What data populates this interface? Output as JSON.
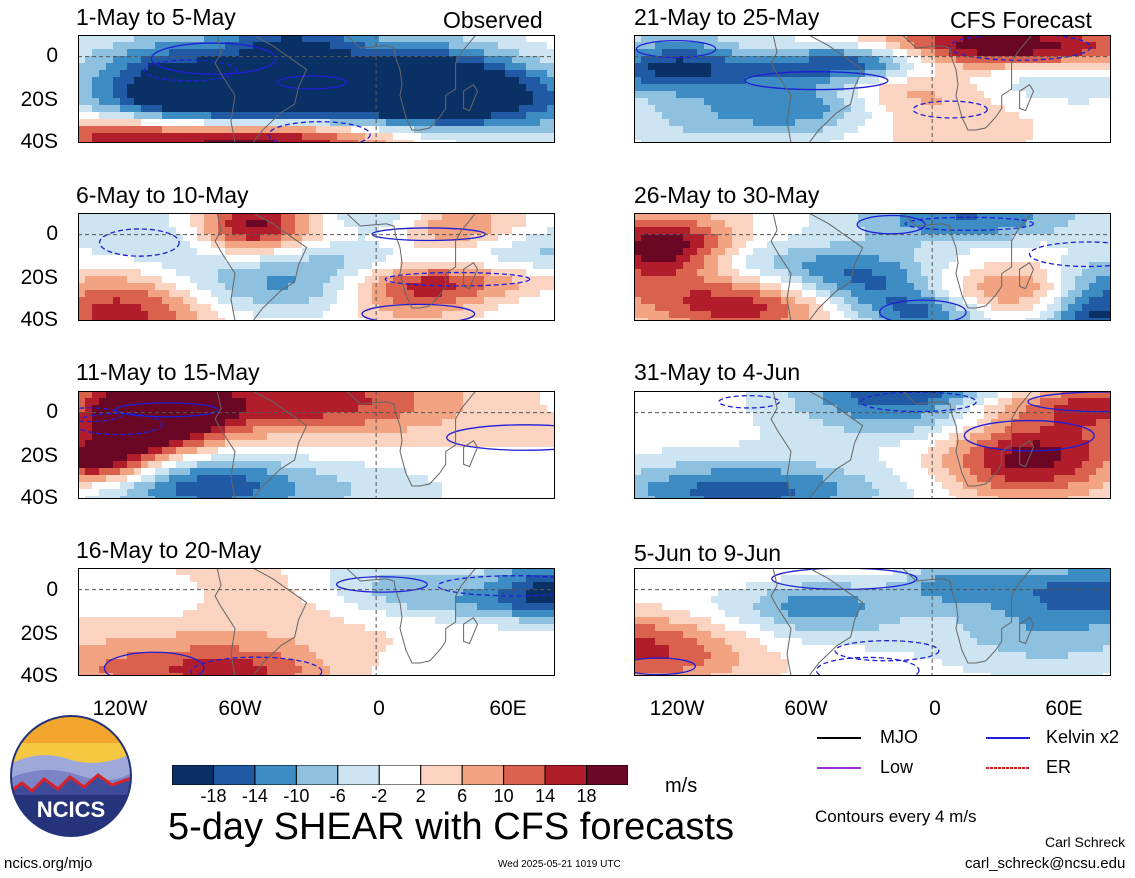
{
  "figure": {
    "main_title": "5-day SHEAR with CFS forecasts",
    "observed_label": "Observed",
    "forecast_label": "CFS Forecast",
    "units": "m/s",
    "contour_note": "Contours every 4 m/s",
    "author": "Carl Schreck",
    "email": "carl_schreck@ncsu.edu",
    "site": "ncics.org/mjo",
    "timestamp": "Wed 2025-05-21 1019 UTC",
    "logo_text": "NCICS"
  },
  "colors": {
    "negative": [
      "#0a3166",
      "#215aa4",
      "#3d8cc3",
      "#8dc1df",
      "#cde4f2"
    ],
    "neutral": "#ffffff",
    "positive": [
      "#fad3c1",
      "#f2a382",
      "#d9614e",
      "#b21d2b",
      "#6a0724"
    ],
    "mjo": "#000000",
    "kelvin": "#1f1fd6",
    "low": "#9b30d9",
    "er": "#d91a1a"
  },
  "legend": [
    {
      "key": "mjo",
      "label": "MJO"
    },
    {
      "key": "kelvin",
      "label": "Kelvin x2"
    },
    {
      "key": "low",
      "label": "Low"
    },
    {
      "key": "er",
      "label": "ER"
    }
  ],
  "colorbar_ticks": [
    "-18",
    "-14",
    "-10",
    "-6",
    "-2",
    "2",
    "6",
    "10",
    "14",
    "18"
  ],
  "axes": {
    "y_ticks": [
      "0",
      "20S",
      "40S"
    ],
    "x_ticks": [
      "120W",
      "60W",
      "0",
      "60E"
    ]
  },
  "chart_data": {
    "type": "heatmap",
    "variable": "vertical wind shear",
    "units": "m/s",
    "lon_range": [
      -150,
      90
    ],
    "lat_range": [
      -40,
      10
    ],
    "shading_levels": [
      -18,
      -14,
      -10,
      -6,
      -2,
      2,
      6,
      10,
      14,
      18
    ],
    "contour_interval_ms": 4,
    "panels": [
      {
        "title": "1-May to 5-May",
        "column": "Observed"
      },
      {
        "title": "6-May to 10-May",
        "column": "Observed"
      },
      {
        "title": "11-May to 15-May",
        "column": "Observed"
      },
      {
        "title": "16-May to 20-May",
        "column": "Observed"
      },
      {
        "title": "21-May to 25-May",
        "column": "CFS Forecast"
      },
      {
        "title": "26-May to 30-May",
        "column": "CFS Forecast"
      },
      {
        "title": "31-May to 4-Jun",
        "column": "CFS Forecast"
      },
      {
        "title": "5-Jun to 9-Jun",
        "column": "CFS Forecast"
      }
    ]
  }
}
